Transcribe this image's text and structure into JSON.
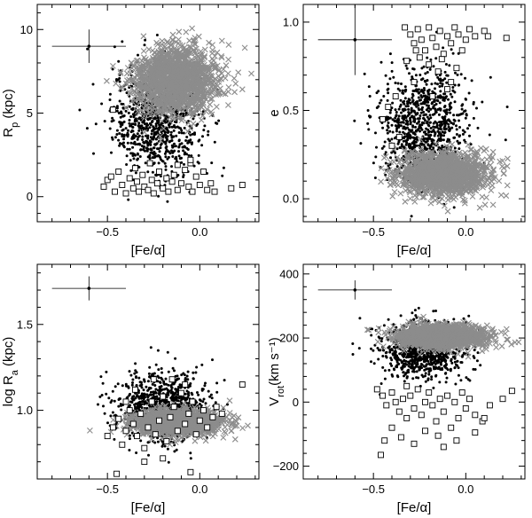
{
  "chart_data": {
    "type": "scatter",
    "legend": "none",
    "grid": false,
    "colors": {
      "dots": "#000000",
      "crosses": "#8c8c8c",
      "squares": "#000000",
      "squares_fill": "#ffffff"
    },
    "panels": [
      {
        "id": "rp",
        "xlabel": "[Fe/α]",
        "ylabel_main": "R",
        "ylabel_sub": "p",
        "ylabel_unit": " (kpc)",
        "xlim": [
          -0.88,
          0.32
        ],
        "ylim": [
          -1.5,
          11.5
        ],
        "xticks": [
          -0.5,
          0.0
        ],
        "xtick_labels": [
          "−0.5",
          "0.0"
        ],
        "yticks": [
          0,
          5,
          10
        ],
        "ytick_labels": [
          "0",
          "5",
          "10"
        ],
        "errorbar": {
          "x": -0.6,
          "y": 9.0,
          "xerr": 0.2,
          "yerr": 1.0
        },
        "crosses": {
          "center": [
            -0.13,
            7.0
          ],
          "spread": [
            0.11,
            1.0
          ],
          "count": 1400
        },
        "dots": {
          "center": [
            -0.23,
            4.6
          ],
          "spread": [
            0.12,
            1.6
          ],
          "count": 900
        },
        "squares": [
          [
            -0.52,
            0.6
          ],
          [
            -0.5,
            1.0
          ],
          [
            -0.46,
            0.3
          ],
          [
            -0.44,
            1.5
          ],
          [
            -0.42,
            0.7
          ],
          [
            -0.4,
            0.2
          ],
          [
            -0.38,
            1.1
          ],
          [
            -0.36,
            0.5
          ],
          [
            -0.34,
            0.9
          ],
          [
            -0.33,
            0.3
          ],
          [
            -0.31,
            1.3
          ],
          [
            -0.3,
            0.6
          ],
          [
            -0.28,
            0.4
          ],
          [
            -0.26,
            1.0
          ],
          [
            -0.25,
            0.2
          ],
          [
            -0.23,
            0.8
          ],
          [
            -0.22,
            1.5
          ],
          [
            -0.2,
            0.5
          ],
          [
            -0.18,
            1.1
          ],
          [
            -0.17,
            0.3
          ],
          [
            -0.15,
            0.9
          ],
          [
            -0.14,
            1.3
          ],
          [
            -0.12,
            0.4
          ],
          [
            -0.1,
            0.8
          ],
          [
            -0.08,
            1.6
          ],
          [
            -0.06,
            0.6
          ],
          [
            -0.05,
            2.0
          ],
          [
            -0.04,
            0.3
          ],
          [
            -0.02,
            1.2
          ],
          [
            0.0,
            0.7
          ],
          [
            0.02,
            1.5
          ],
          [
            0.04,
            0.4
          ],
          [
            0.06,
            0.8
          ],
          [
            0.08,
            0.3
          ],
          [
            0.17,
            0.5
          ],
          [
            0.23,
            0.7
          ],
          [
            -0.48,
            1.2
          ],
          [
            -0.35,
            1.7
          ],
          [
            -0.27,
            2.0
          ],
          [
            -0.47,
            5.2
          ],
          [
            -0.05,
            2.2
          ],
          [
            -0.12,
            1.9
          ]
        ]
      },
      {
        "id": "e",
        "xlabel": "[Fe/α]",
        "ylabel_main": "e",
        "ylabel_sub": "",
        "ylabel_unit": "",
        "xlim": [
          -0.88,
          0.32
        ],
        "ylim": [
          -0.13,
          1.1
        ],
        "xticks": [
          -0.5,
          0.0
        ],
        "xtick_labels": [
          "−0.5",
          "0.0"
        ],
        "yticks": [
          0.0,
          0.5,
          1.0
        ],
        "ytick_labels": [
          "0.0",
          "0.5",
          "1.0"
        ],
        "errorbar": {
          "x": -0.6,
          "y": 0.9,
          "xerr": 0.2,
          "yerr": 0.2
        },
        "crosses": {
          "center": [
            -0.13,
            0.14
          ],
          "spread": [
            0.12,
            0.06
          ],
          "count": 1400
        },
        "dots": {
          "center": [
            -0.23,
            0.42
          ],
          "spread": [
            0.12,
            0.16
          ],
          "count": 900
        },
        "squares": [
          [
            -0.33,
            0.97
          ],
          [
            -0.3,
            0.93
          ],
          [
            -0.28,
            0.88
          ],
          [
            -0.26,
            0.96
          ],
          [
            -0.24,
            0.9
          ],
          [
            -0.22,
            0.84
          ],
          [
            -0.2,
            0.97
          ],
          [
            -0.18,
            0.91
          ],
          [
            -0.16,
            0.86
          ],
          [
            -0.14,
            0.95
          ],
          [
            -0.12,
            0.82
          ],
          [
            -0.1,
            0.92
          ],
          [
            -0.08,
            0.88
          ],
          [
            -0.06,
            0.97
          ],
          [
            -0.04,
            0.93
          ],
          [
            -0.02,
            0.84
          ],
          [
            0.0,
            0.9
          ],
          [
            0.02,
            0.96
          ],
          [
            0.05,
            0.92
          ],
          [
            0.1,
            0.95
          ],
          [
            0.12,
            0.92
          ],
          [
            0.22,
            0.91
          ],
          [
            -0.25,
            0.8
          ],
          [
            -0.15,
            0.72
          ],
          [
            -0.1,
            0.62
          ],
          [
            -0.2,
            0.76
          ],
          [
            -0.05,
            0.74
          ],
          [
            -0.32,
            0.78
          ],
          [
            -0.38,
            0.58
          ],
          [
            -0.42,
            0.52
          ],
          [
            -0.28,
            0.66
          ],
          [
            -0.18,
            0.58
          ],
          [
            -0.45,
            0.45
          ],
          [
            -0.36,
            0.35
          ],
          [
            -0.4,
            0.3
          ],
          [
            -0.08,
            0.66
          ],
          [
            -0.27,
            0.84
          ],
          [
            -0.13,
            0.79
          ]
        ]
      },
      {
        "id": "ra",
        "xlabel": "[Fe/α]",
        "ylabel_main": "log R",
        "ylabel_sub": "a",
        "ylabel_unit": " (kpc)",
        "xlim": [
          -0.88,
          0.32
        ],
        "ylim": [
          0.6,
          1.85
        ],
        "xticks": [
          -0.5,
          0.0
        ],
        "xtick_labels": [
          "−0.5",
          "0.0"
        ],
        "yticks": [
          1.0,
          1.5
        ],
        "ytick_labels": [
          "1.0",
          "1.5"
        ],
        "errorbar": {
          "x": -0.6,
          "y": 1.71,
          "xerr": 0.2,
          "yerr": 0.07
        },
        "crosses": {
          "center": [
            -0.12,
            0.93
          ],
          "spread": [
            0.12,
            0.035
          ],
          "count": 1400
        },
        "dots": {
          "center": [
            -0.2,
            1.02
          ],
          "spread": [
            0.12,
            0.1
          ],
          "count": 900
        },
        "squares": [
          [
            -0.5,
            0.85
          ],
          [
            -0.47,
            0.9
          ],
          [
            -0.44,
            0.95
          ],
          [
            -0.42,
            0.8
          ],
          [
            -0.4,
            0.88
          ],
          [
            -0.38,
            1.0
          ],
          [
            -0.36,
            0.92
          ],
          [
            -0.34,
            0.85
          ],
          [
            -0.32,
            0.98
          ],
          [
            -0.3,
            0.78
          ],
          [
            -0.28,
            0.9
          ],
          [
            -0.26,
            1.05
          ],
          [
            -0.24,
            0.86
          ],
          [
            -0.22,
            0.94
          ],
          [
            -0.2,
            1.08
          ],
          [
            -0.18,
            0.82
          ],
          [
            -0.16,
            0.96
          ],
          [
            -0.14,
            1.02
          ],
          [
            -0.12,
            0.88
          ],
          [
            -0.1,
            1.1
          ],
          [
            -0.08,
            0.92
          ],
          [
            -0.06,
            0.98
          ],
          [
            -0.04,
            1.05
          ],
          [
            -0.02,
            0.86
          ],
          [
            0.0,
            0.94
          ],
          [
            0.02,
            1.0
          ],
          [
            0.04,
            0.9
          ],
          [
            0.07,
            0.96
          ],
          [
            0.09,
            1.02
          ],
          [
            0.12,
            0.98
          ],
          [
            0.23,
            1.15
          ],
          [
            -0.2,
            0.72
          ],
          [
            -0.3,
            0.7
          ],
          [
            -0.45,
            0.63
          ],
          [
            -0.05,
            0.64
          ],
          [
            -0.15,
            1.18
          ],
          [
            -0.35,
            1.12
          ],
          [
            -0.25,
            1.18
          ],
          [
            -0.08,
            1.15
          ],
          [
            -0.4,
            1.05
          ]
        ]
      },
      {
        "id": "vrot",
        "xlabel": "[Fe/α]",
        "ylabel_main": "V",
        "ylabel_sub": "rot",
        "ylabel_unit": "(km s⁻¹)",
        "xlim": [
          -0.88,
          0.32
        ],
        "ylim": [
          -240,
          430
        ],
        "xticks": [
          -0.5,
          0.0
        ],
        "xtick_labels": [
          "−0.5",
          "0.0"
        ],
        "yticks": [
          -200,
          0,
          200,
          400
        ],
        "ytick_labels": [
          "−200",
          "0",
          "200",
          "400"
        ],
        "errorbar": {
          "x": -0.6,
          "y": 350,
          "xerr": 0.2,
          "yerr": 30
        },
        "crosses": {
          "center": [
            -0.13,
            205
          ],
          "spread": [
            0.12,
            18
          ],
          "count": 1400
        },
        "dots": {
          "center": [
            -0.23,
            165
          ],
          "spread": [
            0.12,
            45
          ],
          "count": 900
        },
        "squares": [
          [
            -0.48,
            40
          ],
          [
            -0.45,
            20
          ],
          [
            -0.43,
            -10
          ],
          [
            -0.4,
            30
          ],
          [
            -0.38,
            0
          ],
          [
            -0.36,
            -30
          ],
          [
            -0.34,
            10
          ],
          [
            -0.32,
            -50
          ],
          [
            -0.3,
            20
          ],
          [
            -0.28,
            -20
          ],
          [
            -0.26,
            40
          ],
          [
            -0.24,
            -40
          ],
          [
            -0.22,
            0
          ],
          [
            -0.2,
            30
          ],
          [
            -0.18,
            -10
          ],
          [
            -0.16,
            -60
          ],
          [
            -0.14,
            10
          ],
          [
            -0.12,
            -30
          ],
          [
            -0.1,
            20
          ],
          [
            -0.08,
            -80
          ],
          [
            -0.06,
            0
          ],
          [
            -0.04,
            -50
          ],
          [
            -0.02,
            30
          ],
          [
            0.0,
            -20
          ],
          [
            0.02,
            10
          ],
          [
            0.05,
            -40
          ],
          [
            0.09,
            -60
          ],
          [
            0.13,
            -10
          ],
          [
            0.2,
            10
          ],
          [
            0.25,
            35
          ],
          [
            -0.44,
            -120
          ],
          [
            -0.46,
            -165
          ],
          [
            -0.35,
            -110
          ],
          [
            -0.28,
            -130
          ],
          [
            -0.15,
            -105
          ],
          [
            -0.05,
            -120
          ],
          [
            0.05,
            -95
          ],
          [
            -0.22,
            -90
          ],
          [
            -0.12,
            -140
          ],
          [
            -0.4,
            -80
          ],
          [
            0.1,
            -50
          ],
          [
            -0.32,
            50
          ]
        ]
      }
    ]
  }
}
